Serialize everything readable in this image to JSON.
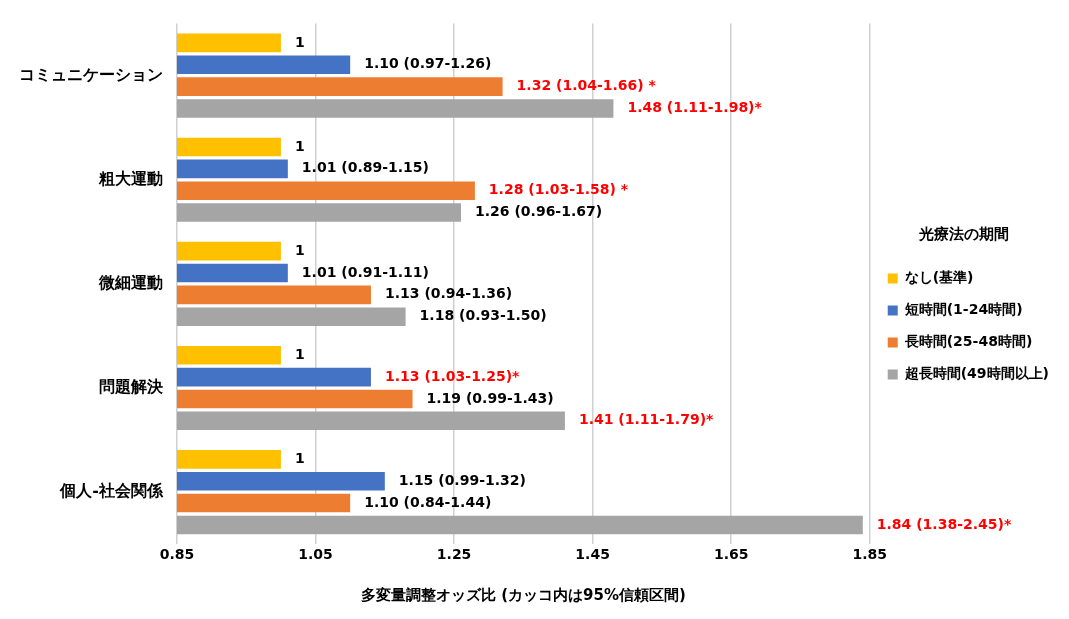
{
  "chart_data": {
    "type": "bar",
    "orientation": "horizontal",
    "xlabel": "多変量調整オッズ比 (カッコ内は95%信頼区間)",
    "legend_title": "光療法の期間",
    "legend": "right",
    "grid": "x",
    "categories": [
      "コミュニケーション",
      "粗大運動",
      "微細運動",
      "問題解決",
      "個人-社会関係"
    ],
    "xlim": [
      0.85,
      1.85
    ],
    "xticks": [
      0.85,
      1.05,
      1.25,
      1.45,
      1.65,
      1.85
    ],
    "series": [
      {
        "name": "なし(基準)",
        "color": "#ffc000",
        "values": [
          1,
          1,
          1,
          1,
          1
        ],
        "value_labels": [
          "1",
          "1",
          "1",
          "1",
          "1"
        ]
      },
      {
        "name": "短時間(1-24時間)",
        "color": "#4472c4",
        "values": [
          1.1,
          1.01,
          1.01,
          1.13,
          1.15
        ],
        "value_labels": [
          "1.10 (0.97-1.26)",
          "1.01 (0.89-1.15)",
          "1.01 (0.91-1.11)",
          "1.13 (1.03-1.25)*",
          "1.15 (0.99-1.32)"
        ]
      },
      {
        "name": "長時間(25-48時間)",
        "color": "#ed7d31",
        "values": [
          1.32,
          1.28,
          1.13,
          1.19,
          1.1
        ],
        "value_labels": [
          "1.32 (1.04-1.66) *",
          "1.28 (1.03-1.58) *",
          "1.13 (0.94-1.36)",
          "1.19 (0.99-1.43)",
          "1.10 (0.84-1.44)"
        ]
      },
      {
        "name": "超長時間(49時間以上)",
        "color": "#a5a5a5",
        "values": [
          1.48,
          1.26,
          1.18,
          1.41,
          1.84
        ],
        "value_labels": [
          "1.48 (1.11-1.98)*",
          "1.26 (0.96-1.67)",
          "1.18 (0.93-1.50)",
          "1.41 (1.11-1.79)*",
          "1.84 (1.38-2.45)*"
        ]
      }
    ]
  }
}
